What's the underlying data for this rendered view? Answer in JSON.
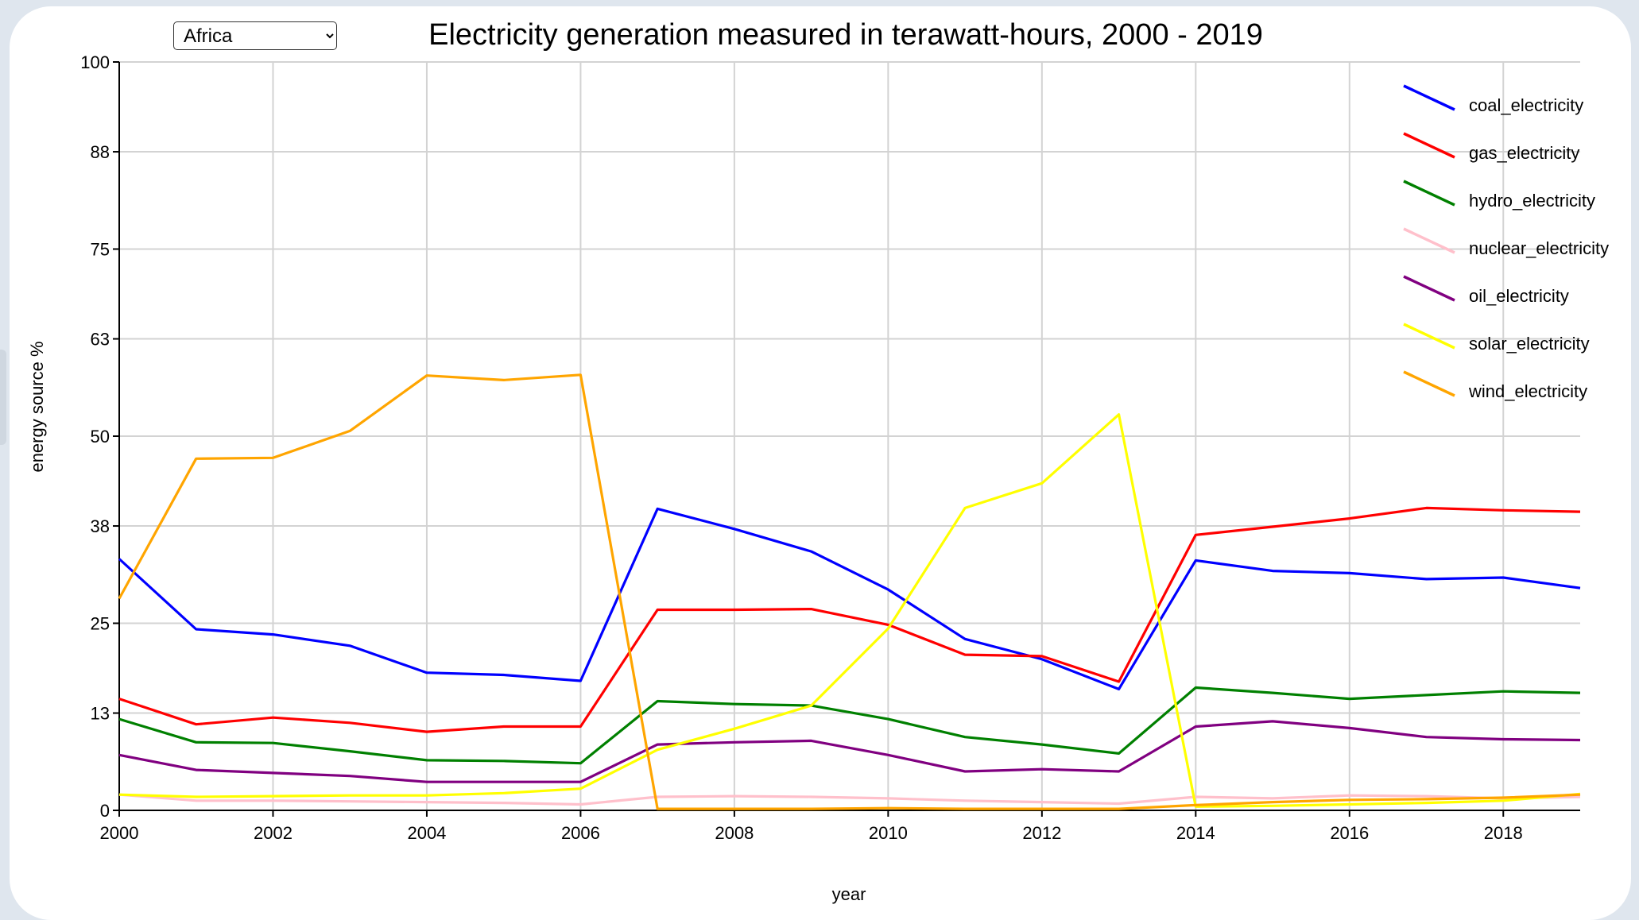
{
  "controls": {
    "region_select": {
      "selected": "Africa",
      "options": [
        "Africa"
      ]
    }
  },
  "chart_data": {
    "type": "line",
    "title": "Electricity generation measured in terawatt-hours, 2000 - 2019",
    "xlabel": "year",
    "ylabel": "energy source %",
    "xlim": [
      2000,
      2019
    ],
    "ylim": [
      0,
      100
    ],
    "grid": true,
    "legend_position": "top-right",
    "x_ticks": [
      "2000",
      "2002",
      "2004",
      "2006",
      "2008",
      "2010",
      "2012",
      "2014",
      "2016",
      "2018"
    ],
    "y_ticks": [
      "0",
      "13",
      "25",
      "38",
      "50",
      "63",
      "75",
      "88",
      "100"
    ],
    "x": [
      2000,
      2001,
      2002,
      2003,
      2004,
      2005,
      2006,
      2007,
      2008,
      2009,
      2010,
      2011,
      2012,
      2013,
      2014,
      2015,
      2016,
      2017,
      2018,
      2019
    ],
    "series": [
      {
        "name": "coal_electricity",
        "color": "#0000ff",
        "values": [
          33.6,
          24.2,
          23.5,
          22.0,
          18.4,
          18.1,
          17.3,
          40.3,
          37.6,
          34.6,
          29.5,
          22.9,
          20.2,
          16.2,
          33.4,
          32.0,
          31.7,
          30.9,
          31.1,
          29.7
        ]
      },
      {
        "name": "gas_electricity",
        "color": "#ff0000",
        "values": [
          14.9,
          11.5,
          12.4,
          11.7,
          10.5,
          11.2,
          11.2,
          26.8,
          26.8,
          26.9,
          24.8,
          20.8,
          20.6,
          17.2,
          36.8,
          37.9,
          39.0,
          40.4,
          40.1,
          39.9
        ]
      },
      {
        "name": "hydro_electricity",
        "color": "#008000",
        "values": [
          12.2,
          9.1,
          9.0,
          7.9,
          6.7,
          6.6,
          6.3,
          14.6,
          14.2,
          14.0,
          12.2,
          9.8,
          8.8,
          7.6,
          16.4,
          15.7,
          14.9,
          15.4,
          15.9,
          15.7
        ]
      },
      {
        "name": "nuclear_electricity",
        "color": "#ffc0cb",
        "values": [
          2.1,
          1.3,
          1.3,
          1.2,
          1.1,
          1.0,
          0.8,
          1.8,
          1.9,
          1.8,
          1.6,
          1.3,
          1.1,
          0.9,
          1.8,
          1.6,
          2.0,
          1.9,
          1.6,
          1.8
        ]
      },
      {
        "name": "oil_electricity",
        "color": "#800080",
        "values": [
          7.4,
          5.4,
          5.0,
          4.6,
          3.8,
          3.8,
          3.8,
          8.8,
          9.1,
          9.3,
          7.4,
          5.2,
          5.5,
          5.2,
          11.2,
          11.9,
          11.0,
          9.8,
          9.5,
          9.4
        ]
      },
      {
        "name": "solar_electricity",
        "color": "#ffff00",
        "values": [
          2.1,
          1.8,
          1.9,
          2.0,
          2.0,
          2.3,
          2.9,
          8.1,
          10.9,
          14.0,
          24.3,
          40.4,
          43.7,
          52.9,
          0.5,
          0.6,
          0.8,
          1.0,
          1.3,
          2.2
        ]
      },
      {
        "name": "wind_electricity",
        "color": "#ffa500",
        "values": [
          28.3,
          47.0,
          47.1,
          50.7,
          58.1,
          57.5,
          58.2,
          0.2,
          0.2,
          0.2,
          0.3,
          0.2,
          0.2,
          0.2,
          0.7,
          1.1,
          1.4,
          1.5,
          1.7,
          2.1
        ]
      }
    ]
  }
}
